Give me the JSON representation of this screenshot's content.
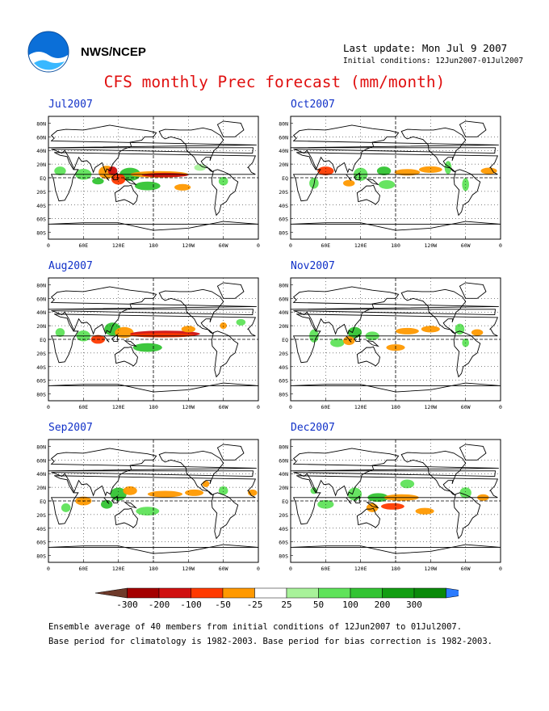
{
  "header": {
    "org_label": "NWS/NCEP",
    "last_update": "Last update: Mon Jul  9 2007",
    "initial_conditions": "Initial conditions: 12Jun2007-01Jul2007",
    "logo_icon": "noaa-logo-icon"
  },
  "title": "CFS monthly Prec forecast (mm/month)",
  "axes": {
    "lat_labels": [
      "80N",
      "60N",
      "40N",
      "20N",
      "EQ",
      "20S",
      "40S",
      "60S",
      "80S"
    ],
    "lon_labels": [
      "0",
      "60E",
      "120E",
      "180",
      "120W",
      "60W",
      "0"
    ]
  },
  "panels": [
    {
      "month": "Jul2007"
    },
    {
      "month": "Oct2007"
    },
    {
      "month": "Aug2007"
    },
    {
      "month": "Nov2007"
    },
    {
      "month": "Sep2007"
    },
    {
      "month": "Dec2007"
    }
  ],
  "colorbar": {
    "labels": [
      "-300",
      "-200",
      "-100",
      "-50",
      "-25",
      "25",
      "50",
      "100",
      "200",
      "300"
    ],
    "colors": [
      "#6e3a2a",
      "#a40000",
      "#d01010",
      "#ff3a00",
      "#ff9900",
      "#ffffff",
      "#a8f29a",
      "#5fe35a",
      "#33c433",
      "#129e12",
      "#0a8a0a",
      "#2b7bff"
    ]
  },
  "footer": {
    "line1": "Ensemble average of 40 members from initial conditions of 12Jun2007 to 01Jul2007.",
    "line2": "Base period for climatology is 1982-2003. Base period for bias correction is 1982-2003."
  }
}
